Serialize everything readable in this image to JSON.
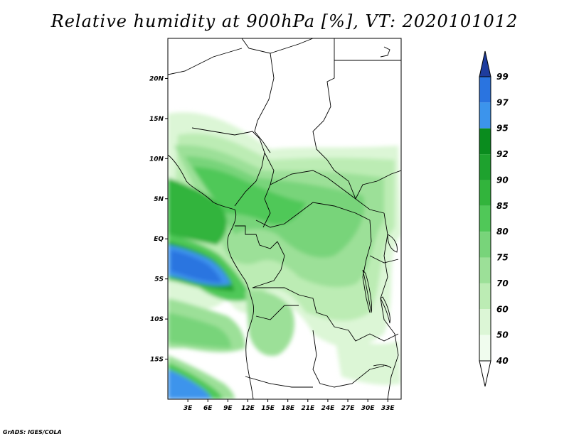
{
  "title": "Relative humidity at 900hPa [%], VT: 2020101012",
  "credit": "GrADS: IGES/COLA",
  "map": {
    "lon_range": [
      0,
      35
    ],
    "lat_range": [
      -20,
      25
    ],
    "lat_labels": [
      "20N",
      "15N",
      "10N",
      "5N",
      "EQ",
      "5S",
      "10S",
      "15S"
    ],
    "lon_labels": [
      "3E",
      "6E",
      "9E",
      "12E",
      "15E",
      "18E",
      "21E",
      "24E",
      "27E",
      "30E",
      "33E"
    ]
  },
  "colorbar": {
    "levels": [
      "99",
      "97",
      "95",
      "92",
      "90",
      "85",
      "80",
      "75",
      "70",
      "60",
      "50",
      "40"
    ],
    "colors": [
      "#1c50d0",
      "#2a74e0",
      "#3c94ec",
      "#0a8c1e",
      "#1ea22e",
      "#32b43c",
      "#50c858",
      "#78d47a",
      "#9ce098",
      "#bcecb4",
      "#dcf6d6",
      "#f0fcee"
    ],
    "top_arrow_color": "#1e3c9e",
    "bottom_arrow_color": "#ffffff"
  }
}
